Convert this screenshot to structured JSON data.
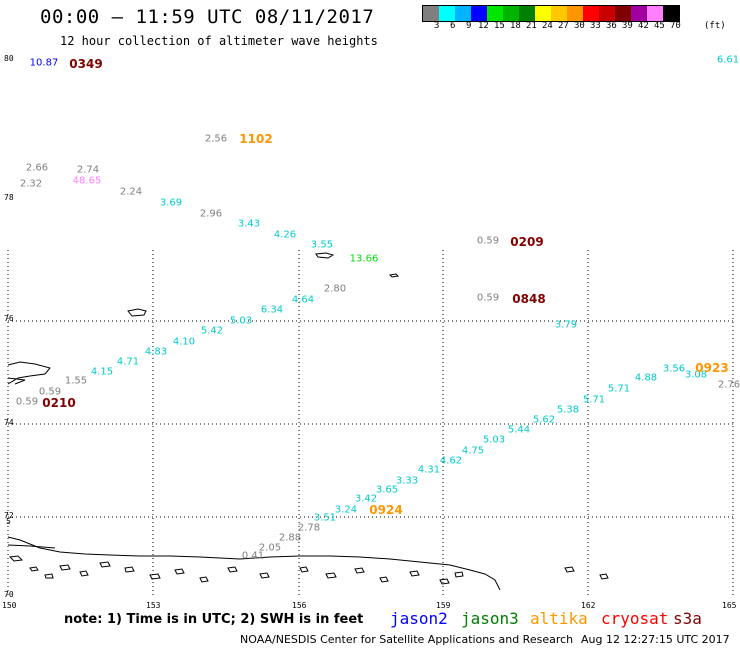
{
  "header": {
    "title": "00:00 – 11:59 UTC 08/11/2017",
    "subtitle": "12 hour collection of altimeter wave heights"
  },
  "legend": {
    "colors": [
      "#7f7f7f",
      "#00ffff",
      "#00b4ff",
      "#0000ff",
      "#00e600",
      "#00b400",
      "#008000",
      "#ffff00",
      "#ffc800",
      "#ff9600",
      "#ff0000",
      "#c80000",
      "#800000",
      "#a000a0",
      "#ff80ff",
      "#000000"
    ],
    "labels": [
      "3",
      "6",
      "9",
      "12",
      "15",
      "18",
      "21",
      "24",
      "27",
      "30",
      "33",
      "36",
      "39",
      "42",
      "45",
      "70"
    ],
    "unit": "(ft)"
  },
  "axes": {
    "x_ticks": [
      "150",
      "153",
      "156",
      "159",
      "162",
      "165"
    ],
    "y_ticks": [
      "80",
      "78",
      "76",
      "74",
      "72",
      "70"
    ],
    "y_tick_small": "5"
  },
  "wave_heights": [
    {
      "text": "10.87",
      "color": "#0000ff"
    },
    {
      "text": "6.61",
      "color": "#00cccc"
    },
    {
      "text": "2.56",
      "color": "#7f7f7f"
    },
    {
      "text": "2.66",
      "color": "#7f7f7f"
    },
    {
      "text": "2.74",
      "color": "#7f7f7f"
    },
    {
      "text": "2.32",
      "color": "#7f7f7f"
    },
    {
      "text": "48.65",
      "color": "#ff80ff"
    },
    {
      "text": "2.24",
      "color": "#7f7f7f"
    },
    {
      "text": "3.69",
      "color": "#00cccc"
    },
    {
      "text": "2.96",
      "color": "#7f7f7f"
    },
    {
      "text": "3.43",
      "color": "#00cccc"
    },
    {
      "text": "4.26",
      "color": "#00cccc"
    },
    {
      "text": "3.55",
      "color": "#00cccc"
    },
    {
      "text": "13.66",
      "color": "#00dd00"
    },
    {
      "text": "0.59",
      "color": "#7f7f7f"
    },
    {
      "text": "2.80",
      "color": "#7f7f7f"
    },
    {
      "text": "4.64",
      "color": "#00cccc"
    },
    {
      "text": "0.59",
      "color": "#7f7f7f"
    },
    {
      "text": "6.34",
      "color": "#00cccc"
    },
    {
      "text": "5.03",
      "color": "#00cccc"
    },
    {
      "text": "5.42",
      "color": "#00cccc"
    },
    {
      "text": "3.79",
      "color": "#00cccc"
    },
    {
      "text": "4.10",
      "color": "#00cccc"
    },
    {
      "text": "4.83",
      "color": "#00cccc"
    },
    {
      "text": "4.71",
      "color": "#00cccc"
    },
    {
      "text": "3.56",
      "color": "#00cccc"
    },
    {
      "text": "3.08",
      "color": "#00cccc"
    },
    {
      "text": "4.15",
      "color": "#00cccc"
    },
    {
      "text": "4.88",
      "color": "#00cccc"
    },
    {
      "text": "1.55",
      "color": "#7f7f7f"
    },
    {
      "text": "2.76",
      "color": "#7f7f7f"
    },
    {
      "text": "0.59",
      "color": "#7f7f7f"
    },
    {
      "text": "5.71",
      "color": "#00cccc"
    },
    {
      "text": "0.59",
      "color": "#7f7f7f"
    },
    {
      "text": "5.71",
      "color": "#00cccc"
    },
    {
      "text": "5.38",
      "color": "#00cccc"
    },
    {
      "text": "5.62",
      "color": "#00cccc"
    },
    {
      "text": "5.44",
      "color": "#00cccc"
    },
    {
      "text": "5.03",
      "color": "#00cccc"
    },
    {
      "text": "4.75",
      "color": "#00cccc"
    },
    {
      "text": "4.62",
      "color": "#00cccc"
    },
    {
      "text": "4.31",
      "color": "#00cccc"
    },
    {
      "text": "3.33",
      "color": "#00cccc"
    },
    {
      "text": "3.65",
      "color": "#00cccc"
    },
    {
      "text": "3.42",
      "color": "#00cccc"
    },
    {
      "text": "3.24",
      "color": "#00cccc"
    },
    {
      "text": "3.51",
      "color": "#00cccc"
    },
    {
      "text": "2.78",
      "color": "#7f7f7f"
    },
    {
      "text": "2.88",
      "color": "#7f7f7f"
    },
    {
      "text": "2.05",
      "color": "#7f7f7f"
    },
    {
      "text": "0.41",
      "color": "#7f7f7f"
    }
  ],
  "time_labels": [
    {
      "text": "0349",
      "color": "#800000"
    },
    {
      "text": "1102",
      "color": "#ff9600"
    },
    {
      "text": "0209",
      "color": "#800000"
    },
    {
      "text": "0848",
      "color": "#800000"
    },
    {
      "text": "0210",
      "color": "#800000"
    },
    {
      "text": "0923",
      "color": "#ff9600"
    },
    {
      "text": "0924",
      "color": "#ff9600"
    }
  ],
  "note": "note: 1) Time is in UTC; 2) SWH is in feet",
  "satellites": [
    {
      "name": "jason2",
      "color": "#0000ff"
    },
    {
      "name": "jason3",
      "color": "#008000"
    },
    {
      "name": "altika",
      "color": "#ff9600"
    },
    {
      "name": "cryosat",
      "color": "#ff0000"
    },
    {
      "name": "s3a",
      "color": "#800000"
    }
  ],
  "footer": {
    "left": "NOAA/NESDIS Center for Satellite Applications and Research",
    "right": "Aug 12 12:27:15 UTC 2017"
  }
}
